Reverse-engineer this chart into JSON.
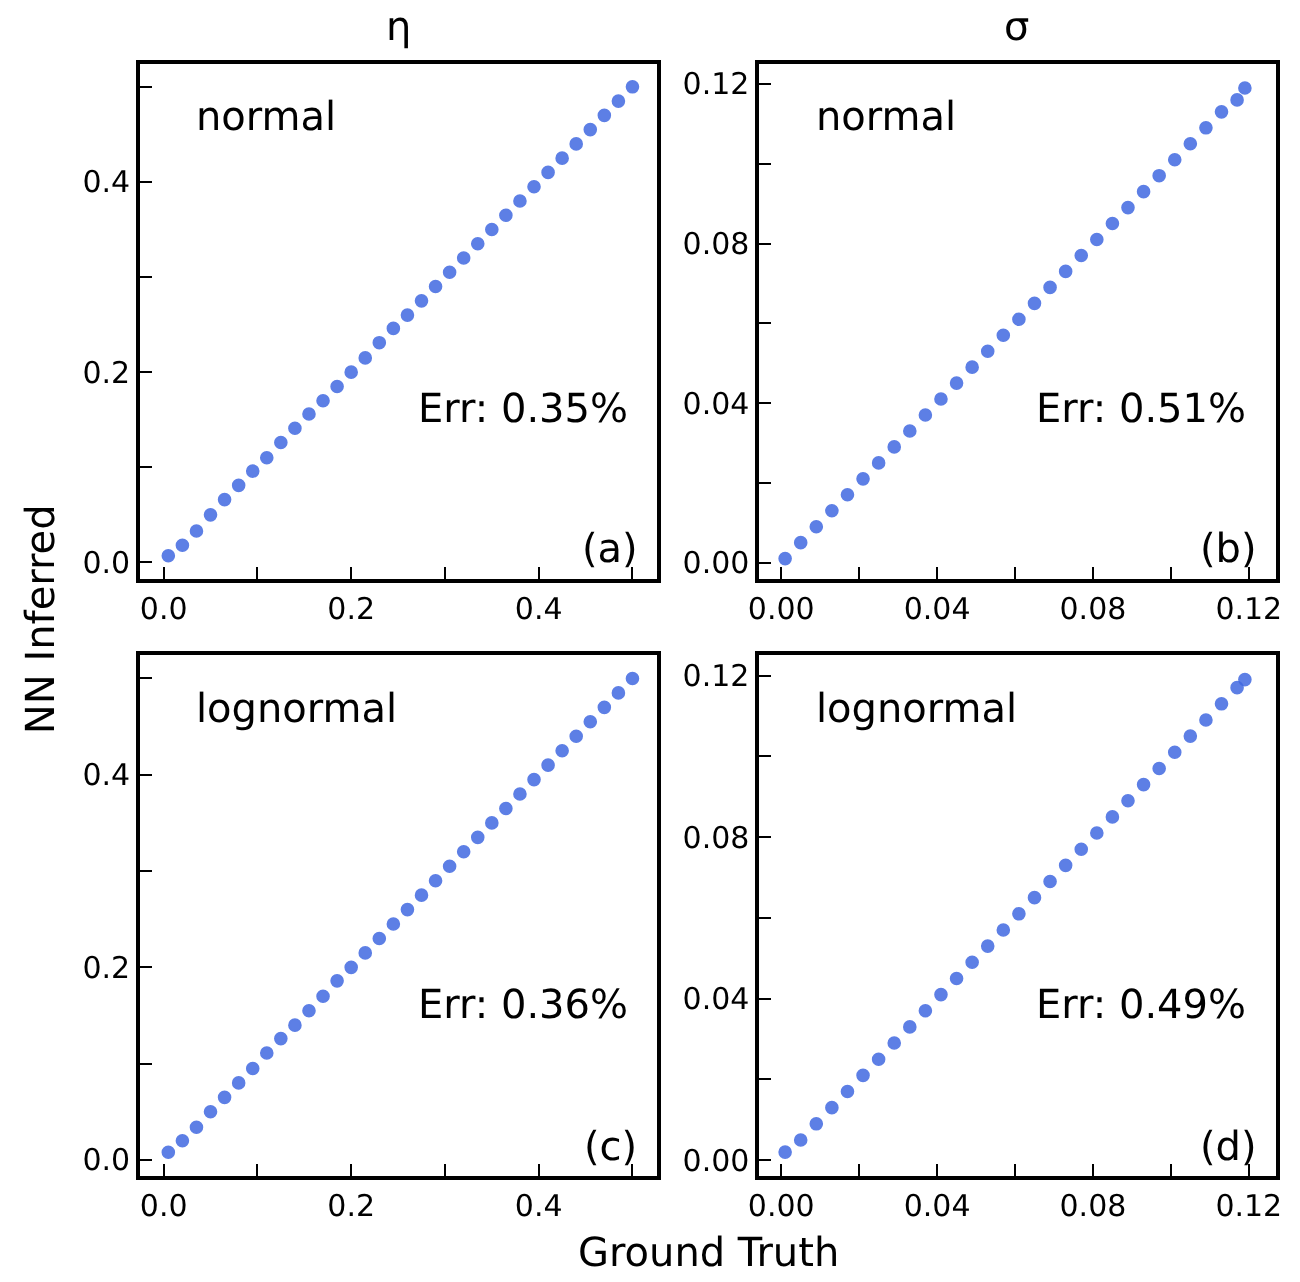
{
  "chart_data": [
    {
      "type": "scatter",
      "title": "η",
      "ylabel": "NN Inferred",
      "annotations": [
        "normal",
        "Err: 0.35%",
        "(a)"
      ],
      "marker": "circle",
      "grid": false,
      "xlim": [
        -0.025,
        0.526
      ],
      "ylim": [
        -0.017,
        0.524
      ],
      "xticks": [
        {
          "value": 0,
          "label": "0.0"
        },
        {
          "value": 0.1,
          "label": null
        },
        0.2,
        {
          "value": 0.3,
          "label": null
        },
        0.4,
        {
          "value": 0.5,
          "label": null
        }
      ],
      "yticks": [
        {
          "value": 0,
          "label": "0.0"
        },
        {
          "value": 0.1,
          "label": null
        },
        0.2,
        {
          "value": 0.3,
          "label": null
        },
        0.4,
        {
          "value": 0.5,
          "label": null
        }
      ],
      "series": [
        {
          "color": "#4169e1",
          "x": [
            0.005,
            0.02,
            0.035,
            0.05,
            0.065,
            0.08,
            0.095,
            0.11,
            0.125,
            0.14,
            0.155,
            0.17,
            0.185,
            0.2,
            0.215,
            0.23,
            0.245,
            0.26,
            0.275,
            0.29,
            0.305,
            0.32,
            0.335,
            0.35,
            0.365,
            0.38,
            0.395,
            0.41,
            0.425,
            0.44,
            0.455,
            0.47,
            0.485,
            0.5
          ],
          "values": [
            0.007,
            0.018,
            0.033,
            0.05,
            0.066,
            0.081,
            0.096,
            0.11,
            0.126,
            0.141,
            0.156,
            0.17,
            0.185,
            0.2,
            0.215,
            0.231,
            0.246,
            0.26,
            0.275,
            0.29,
            0.305,
            0.32,
            0.335,
            0.35,
            0.365,
            0.38,
            0.395,
            0.41,
            0.425,
            0.44,
            0.455,
            0.47,
            0.485,
            0.5
          ]
        }
      ]
    },
    {
      "type": "scatter",
      "title": "σ",
      "annotations": [
        "normal",
        "Err: 0.51%",
        "(b)"
      ],
      "marker": "circle",
      "grid": false,
      "xlim": [
        -0.0056,
        0.127
      ],
      "ylim": [
        -0.004,
        0.125
      ],
      "xticks": [
        {
          "value": 0,
          "label": "0.00"
        },
        {
          "value": 0.02,
          "label": null
        },
        0.04,
        {
          "value": 0.06,
          "label": null
        },
        0.08,
        {
          "value": 0.1,
          "label": null
        },
        0.12
      ],
      "yticks": [
        {
          "value": 0,
          "label": "0.00"
        },
        {
          "value": 0.02,
          "label": null
        },
        0.04,
        {
          "value": 0.06,
          "label": null
        },
        0.08,
        {
          "value": 0.1,
          "label": null
        },
        0.12
      ],
      "series": [
        {
          "color": "#4169e1",
          "x": [
            0.001,
            0.005,
            0.009,
            0.013,
            0.017,
            0.021,
            0.025,
            0.029,
            0.033,
            0.037,
            0.041,
            0.045,
            0.049,
            0.053,
            0.057,
            0.061,
            0.065,
            0.069,
            0.073,
            0.077,
            0.081,
            0.085,
            0.089,
            0.093,
            0.097,
            0.101,
            0.105,
            0.109,
            0.113,
            0.117,
            0.119
          ],
          "values": [
            0.001,
            0.005,
            0.009,
            0.013,
            0.017,
            0.021,
            0.025,
            0.029,
            0.033,
            0.037,
            0.041,
            0.045,
            0.049,
            0.053,
            0.057,
            0.061,
            0.065,
            0.069,
            0.073,
            0.077,
            0.081,
            0.085,
            0.089,
            0.093,
            0.097,
            0.101,
            0.105,
            0.109,
            0.113,
            0.116,
            0.119
          ]
        }
      ]
    },
    {
      "type": "scatter",
      "xlabel": "Ground Truth",
      "annotations": [
        "lognormal",
        "Err: 0.36%",
        "(c)"
      ],
      "marker": "circle",
      "grid": false,
      "xlim": [
        -0.025,
        0.526
      ],
      "ylim": [
        -0.017,
        0.524
      ],
      "xticks": [
        {
          "value": 0,
          "label": "0.0"
        },
        {
          "value": 0.1,
          "label": null
        },
        0.2,
        {
          "value": 0.3,
          "label": null
        },
        0.4,
        {
          "value": 0.5,
          "label": null
        }
      ],
      "yticks": [
        {
          "value": 0,
          "label": "0.0"
        },
        {
          "value": 0.1,
          "label": null
        },
        0.2,
        {
          "value": 0.3,
          "label": null
        },
        0.4,
        {
          "value": 0.5,
          "label": null
        }
      ],
      "series": [
        {
          "color": "#4169e1",
          "x": [
            0.005,
            0.02,
            0.035,
            0.05,
            0.065,
            0.08,
            0.095,
            0.11,
            0.125,
            0.14,
            0.155,
            0.17,
            0.185,
            0.2,
            0.215,
            0.23,
            0.245,
            0.26,
            0.275,
            0.29,
            0.305,
            0.32,
            0.335,
            0.35,
            0.365,
            0.38,
            0.395,
            0.41,
            0.425,
            0.44,
            0.455,
            0.47,
            0.485,
            0.5
          ],
          "values": [
            0.008,
            0.02,
            0.034,
            0.05,
            0.065,
            0.08,
            0.095,
            0.111,
            0.126,
            0.14,
            0.155,
            0.17,
            0.186,
            0.2,
            0.215,
            0.23,
            0.245,
            0.26,
            0.275,
            0.29,
            0.305,
            0.32,
            0.335,
            0.35,
            0.365,
            0.38,
            0.395,
            0.41,
            0.425,
            0.44,
            0.455,
            0.47,
            0.485,
            0.5
          ]
        }
      ]
    },
    {
      "type": "scatter",
      "annotations": [
        "lognormal",
        "Err: 0.49%",
        "(d)"
      ],
      "marker": "circle",
      "grid": false,
      "xlim": [
        -0.0056,
        0.127
      ],
      "ylim": [
        -0.004,
        0.125
      ],
      "xticks": [
        {
          "value": 0,
          "label": "0.00"
        },
        {
          "value": 0.02,
          "label": null
        },
        0.04,
        {
          "value": 0.06,
          "label": null
        },
        0.08,
        {
          "value": 0.1,
          "label": null
        },
        0.12
      ],
      "yticks": [
        {
          "value": 0,
          "label": "0.00"
        },
        {
          "value": 0.02,
          "label": null
        },
        0.04,
        {
          "value": 0.06,
          "label": null
        },
        0.08,
        {
          "value": 0.1,
          "label": null
        },
        0.12
      ],
      "series": [
        {
          "color": "#4169e1",
          "x": [
            0.001,
            0.005,
            0.009,
            0.013,
            0.017,
            0.021,
            0.025,
            0.029,
            0.033,
            0.037,
            0.041,
            0.045,
            0.049,
            0.053,
            0.057,
            0.061,
            0.065,
            0.069,
            0.073,
            0.077,
            0.081,
            0.085,
            0.089,
            0.093,
            0.097,
            0.101,
            0.105,
            0.109,
            0.113,
            0.117,
            0.119
          ],
          "values": [
            0.002,
            0.005,
            0.009,
            0.013,
            0.017,
            0.021,
            0.025,
            0.029,
            0.033,
            0.037,
            0.041,
            0.045,
            0.049,
            0.053,
            0.057,
            0.061,
            0.065,
            0.069,
            0.073,
            0.077,
            0.081,
            0.085,
            0.089,
            0.093,
            0.097,
            0.101,
            0.105,
            0.109,
            0.113,
            0.117,
            0.119
          ]
        }
      ]
    }
  ]
}
